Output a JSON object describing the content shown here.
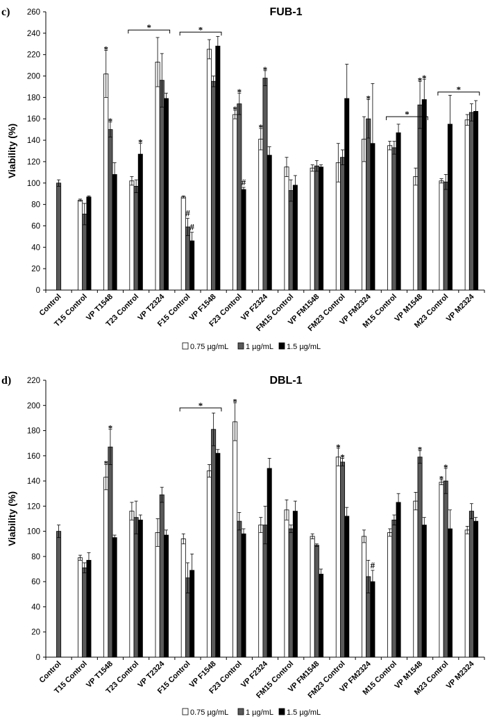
{
  "legend": [
    "0.75 µg/mL",
    "1 µg/mL",
    "1.5 µg/mL"
  ],
  "colors": {
    "s0": "#ffffff",
    "s1": "#595959",
    "s2": "#000000",
    "stroke": "#000000"
  },
  "chart_data": [
    {
      "type": "bar",
      "panel_label": "c)",
      "title": "FUB-1",
      "ylabel": "Viability (%)",
      "xlabel": "",
      "ylim": [
        0,
        260
      ],
      "yticks": [
        0,
        20,
        40,
        60,
        80,
        100,
        120,
        140,
        160,
        180,
        200,
        220,
        240,
        260
      ],
      "categories": [
        "Control",
        "T15 Control",
        "VP T1548",
        "T23 Control",
        "VP T2324",
        "F15 Control",
        "VP F1548",
        "F23 Control",
        "VP F2324",
        "FM15 Control",
        "VP FM1548",
        "FM23 Control",
        "VP FM2324",
        "M15 Control",
        "VP M1548",
        "M23 Control",
        "VP M2324"
      ],
      "series": [
        {
          "name": "0.75 µg/mL",
          "values": [
            null,
            84,
            202,
            102,
            213,
            87,
            225,
            164,
            141,
            115,
            114,
            119,
            141,
            135,
            106,
            102,
            159
          ],
          "errors": [
            null,
            1,
            22,
            4,
            23,
            1,
            9,
            4,
            10,
            9,
            3,
            18,
            21,
            4,
            8,
            2,
            5
          ]
        },
        {
          "name": "1 µg/mL",
          "values": [
            100,
            71,
            150,
            97,
            196,
            59,
            195,
            174,
            198,
            93,
            116,
            124,
            160,
            133,
            173,
            101,
            166
          ],
          "errors": [
            3,
            10,
            7,
            6,
            25,
            8,
            5,
            10,
            7,
            10,
            5,
            7,
            18,
            6,
            22,
            7,
            8
          ]
        },
        {
          "name": "1.5 µg/mL",
          "values": [
            null,
            87,
            108,
            127,
            179,
            46,
            228,
            94,
            126,
            98,
            115,
            179,
            137,
            147,
            178,
            155,
            167
          ],
          "errors": [
            null,
            1,
            11,
            10,
            5,
            8,
            9,
            2,
            8,
            9,
            2,
            32,
            56,
            8,
            19,
            27,
            10
          ]
        }
      ],
      "annotations": [
        {
          "text": "*",
          "category": 2,
          "series": 0
        },
        {
          "text": "*",
          "category": 2,
          "series": 1
        },
        {
          "text": "*",
          "category": 3,
          "series": 2
        },
        {
          "text": "#",
          "category": 5,
          "series": 1
        },
        {
          "text": "#",
          "category": 5,
          "series": 2
        },
        {
          "text": "*",
          "category": 7,
          "series": 0
        },
        {
          "text": "*",
          "category": 7,
          "series": 1
        },
        {
          "text": "#",
          "category": 7,
          "series": 2
        },
        {
          "text": "*",
          "category": 8,
          "series": 0
        },
        {
          "text": "*",
          "category": 8,
          "series": 1
        },
        {
          "text": "*",
          "category": 12,
          "series": 1
        },
        {
          "text": "*",
          "category": 14,
          "series": 1
        },
        {
          "text": "*",
          "category": 14,
          "series": 2
        }
      ],
      "brackets": [
        {
          "text": "*",
          "from": 3,
          "to": 4,
          "y": 243
        },
        {
          "text": "*",
          "from": 5,
          "to": 6,
          "y": 241
        },
        {
          "text": "*",
          "from": 13,
          "to": 14,
          "y": 162
        },
        {
          "text": "*",
          "from": 15,
          "to": 16,
          "y": 185
        }
      ]
    },
    {
      "type": "bar",
      "panel_label": "d)",
      "title": "DBL-1",
      "ylabel": "Viability (%)",
      "xlabel": "",
      "ylim": [
        0,
        220
      ],
      "yticks": [
        0,
        20,
        40,
        60,
        80,
        100,
        120,
        140,
        160,
        180,
        200,
        220
      ],
      "categories": [
        "Control",
        "T15 Control",
        "VP T1548",
        "T23 Control",
        "VP T2324",
        "F15 Control",
        "VP F1548",
        "F23 Control",
        "VP F2324",
        "FM15 Control",
        "VP FM1548",
        "FM23 Control",
        "VP FM2324",
        "M15 Control",
        "VP M1548",
        "M23 Control",
        "VP M2324"
      ],
      "series": [
        {
          "name": "0.75 µg/mL",
          "values": [
            null,
            79,
            143,
            116,
            99,
            94,
            148,
            187,
            105,
            117,
            96,
            159,
            96,
            99,
            124,
            139,
            101
          ],
          "errors": [
            null,
            2,
            10,
            7,
            11,
            4,
            5,
            15,
            6,
            8,
            2,
            7,
            5,
            3,
            7,
            2,
            3
          ]
        },
        {
          "name": "1 µg/mL",
          "values": [
            100,
            71,
            167,
            111,
            129,
            63,
            181,
            108,
            105,
            102,
            89,
            155,
            64,
            109,
            159,
            140,
            116
          ],
          "errors": [
            5,
            4,
            14,
            13,
            6,
            12,
            13,
            7,
            15,
            3,
            1,
            3,
            13,
            4,
            5,
            10,
            6
          ]
        },
        {
          "name": "1.5 µg/mL",
          "values": [
            null,
            77,
            95,
            109,
            97,
            69,
            162,
            98,
            150,
            116,
            66,
            112,
            60,
            123,
            105,
            102,
            108
          ],
          "errors": [
            null,
            6,
            2,
            4,
            4,
            13,
            3,
            4,
            8,
            8,
            4,
            7,
            9,
            7,
            6,
            15,
            3
          ]
        }
      ],
      "annotations": [
        {
          "text": "*",
          "category": 2,
          "series": 0
        },
        {
          "text": "*",
          "category": 2,
          "series": 1
        },
        {
          "text": "*",
          "category": 7,
          "series": 0
        },
        {
          "text": "*",
          "category": 11,
          "series": 0
        },
        {
          "text": "*",
          "category": 11,
          "series": 1
        },
        {
          "text": "#",
          "category": 12,
          "series": 2
        },
        {
          "text": "*",
          "category": 14,
          "series": 1
        },
        {
          "text": "*",
          "category": 15,
          "series": 0
        },
        {
          "text": "*",
          "category": 15,
          "series": 1
        }
      ],
      "brackets": [
        {
          "text": "*",
          "from": 5,
          "to": 6,
          "y": 198
        }
      ]
    }
  ]
}
